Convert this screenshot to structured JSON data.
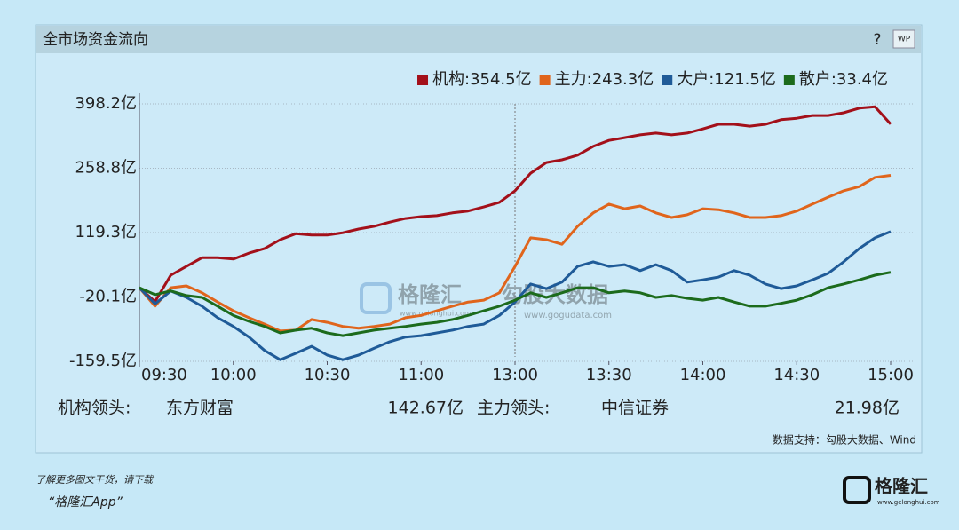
{
  "chart_data": {
    "type": "line",
    "title": "全市场资金流向",
    "categories": [
      "09:30",
      null,
      null,
      null,
      null,
      null,
      "10:00",
      null,
      null,
      null,
      null,
      null,
      "10:30",
      null,
      null,
      null,
      null,
      null,
      "11:00",
      null,
      null,
      null,
      null,
      null,
      "13:00",
      null,
      null,
      null,
      null,
      null,
      "13:30",
      null,
      null,
      null,
      null,
      null,
      "14:00",
      null,
      null,
      null,
      null,
      null,
      "14:30",
      null,
      null,
      null,
      null,
      null,
      "15:00"
    ],
    "series": [
      {
        "name": "机构",
        "last_label": ":354.5亿",
        "color": "#a3101a",
        "values": [
          0,
          -30,
          27,
          46,
          65,
          65,
          62,
          75,
          85,
          104,
          117,
          114,
          114,
          119,
          127,
          133,
          142,
          150,
          154,
          156,
          162,
          166,
          175,
          185,
          210,
          248,
          271,
          277,
          287,
          306,
          319,
          325,
          331,
          335,
          331,
          335,
          344,
          354,
          354,
          350,
          354,
          364,
          367,
          373,
          373,
          379,
          389,
          392,
          354.5
        ]
      },
      {
        "name": "主力",
        "last_label": ":243.3亿",
        "color": "#e0651c",
        "values": [
          0,
          -40,
          0,
          4,
          -11,
          -31,
          -50,
          -65,
          -79,
          -94,
          -92,
          -69,
          -75,
          -84,
          -88,
          -84,
          -79,
          -65,
          -60,
          -50,
          -40,
          -31,
          -27,
          -11,
          46,
          108,
          104,
          94,
          133,
          162,
          181,
          171,
          177,
          162,
          152,
          158,
          171,
          169,
          162,
          152,
          152,
          156,
          166,
          181,
          196,
          210,
          219,
          239,
          243.3
        ]
      },
      {
        "name": "大户",
        "last_label": ":121.5亿",
        "color": "#1f5b98",
        "values": [
          0,
          -35,
          -7,
          -21,
          -40,
          -65,
          -84,
          -107,
          -136,
          -156,
          -142,
          -127,
          -146,
          -156,
          -146,
          -131,
          -117,
          -107,
          -104,
          -98,
          -92,
          -84,
          -79,
          -60,
          -31,
          8,
          -2,
          12,
          46,
          56,
          46,
          50,
          37,
          50,
          37,
          12,
          17,
          23,
          37,
          27,
          8,
          -2,
          4,
          17,
          31,
          56,
          85,
          108,
          121.5
        ]
      },
      {
        "name": "散户",
        "last_label": ":33.4亿",
        "color": "#1c6b1c",
        "values": [
          0,
          -15,
          -7,
          -17,
          -21,
          -40,
          -60,
          -73,
          -84,
          -98,
          -92,
          -88,
          -98,
          -104,
          -98,
          -92,
          -88,
          -84,
          -79,
          -75,
          -69,
          -60,
          -50,
          -40,
          -27,
          -11,
          -21,
          -11,
          0,
          0,
          -11,
          -7,
          -11,
          -21,
          -17,
          -23,
          -27,
          -21,
          -31,
          -40,
          -40,
          -34,
          -27,
          -15,
          0,
          8,
          17,
          27,
          33.4
        ]
      }
    ],
    "ylim": [
      -159.5,
      398.2
    ],
    "yticks": [
      {
        "value": 398.2,
        "label": "398.2亿"
      },
      {
        "value": 258.8,
        "label": "258.8亿"
      },
      {
        "value": 119.3,
        "label": "119.3亿"
      },
      {
        "value": -20.1,
        "label": "-20.1亿"
      },
      {
        "value": -159.5,
        "label": "-159.5亿"
      }
    ],
    "grid": true
  },
  "leaders": {
    "inst_label": "机构领头:",
    "inst_name": "东方财富",
    "inst_value": "142.67亿",
    "main_label": "主力领头:",
    "main_name": "中信证券",
    "main_value": "21.98亿"
  },
  "source": "数据支持：勾股大数据、Wind",
  "watermark": {
    "brand": "格隆汇",
    "brand_url": "www.gelonghui.com",
    "data_brand": "勾股大数据",
    "data_url": "www.gogudata.com"
  },
  "footer": {
    "prompt": "了解更多图文干货，请下载",
    "app": "“格隆汇App”",
    "logo": "格隆汇",
    "logo_url": "www.gelonghui.com"
  },
  "help": "?",
  "icon": "WP"
}
